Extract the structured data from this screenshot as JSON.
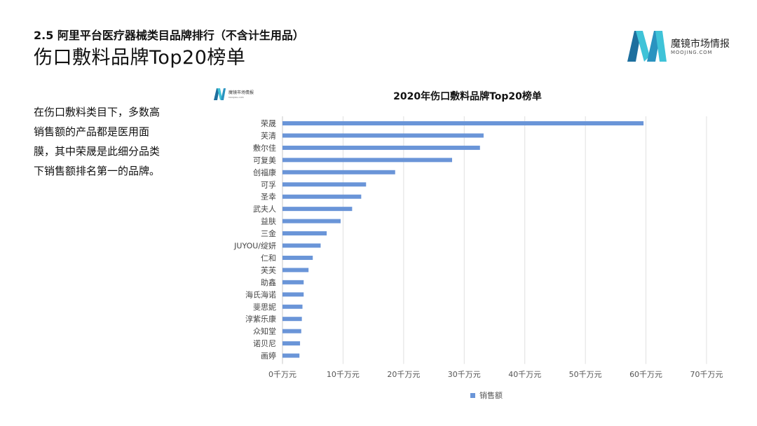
{
  "header": {
    "section_title": "2.5 阿里平台医疗器械类目品牌排行（不含计生用品）",
    "main_title": "伤口敷料品牌Top20榜单"
  },
  "brand": {
    "name": "魔镜市场情报",
    "domain": "MOOJING.COM"
  },
  "chart_logo": {
    "name": "魔镜市场情报",
    "domain": "MOOJING.COM"
  },
  "description": "在伤口敷料类目下，多数高销售额的产品都是医用面膜，其中荣晟是此细分品类下销售额排名第一的品牌。",
  "colors": {
    "bar": "#6a95d8",
    "logo_dark": "#1d6f9e",
    "logo_light": "#3fc3d8",
    "grid": "#e0e0e0"
  },
  "chart_data": {
    "type": "bar",
    "orientation": "horizontal",
    "title": "2020年伤口敷料品牌Top20榜单",
    "categories": [
      "荣晟",
      "芙清",
      "敷尔佳",
      "可复美",
      "创福康",
      "可孚",
      "圣幸",
      "武夫人",
      "益肤",
      "三金",
      "JUYOU/绽妍",
      "仁和",
      "芙芙",
      "助鑫",
      "海氏海诺",
      "斐思妮",
      "淳紫乐康",
      "众知堂",
      "诺贝尼",
      "画婷"
    ],
    "series": [
      {
        "name": "销售额",
        "values": [
          59.6,
          33.2,
          32.6,
          28.0,
          18.6,
          13.8,
          13.0,
          11.5,
          9.6,
          7.3,
          6.3,
          5.0,
          4.3,
          3.5,
          3.5,
          3.3,
          3.2,
          3.1,
          2.9,
          2.8
        ]
      }
    ],
    "x_ticks": [
      "0千万元",
      "10千万元",
      "20千万元",
      "30千万元",
      "40千万元",
      "50千万元",
      "60千万元",
      "70千万元"
    ],
    "xlim": [
      0,
      70
    ],
    "unit": "千万元",
    "legend": "bottom-center",
    "grid": true
  }
}
